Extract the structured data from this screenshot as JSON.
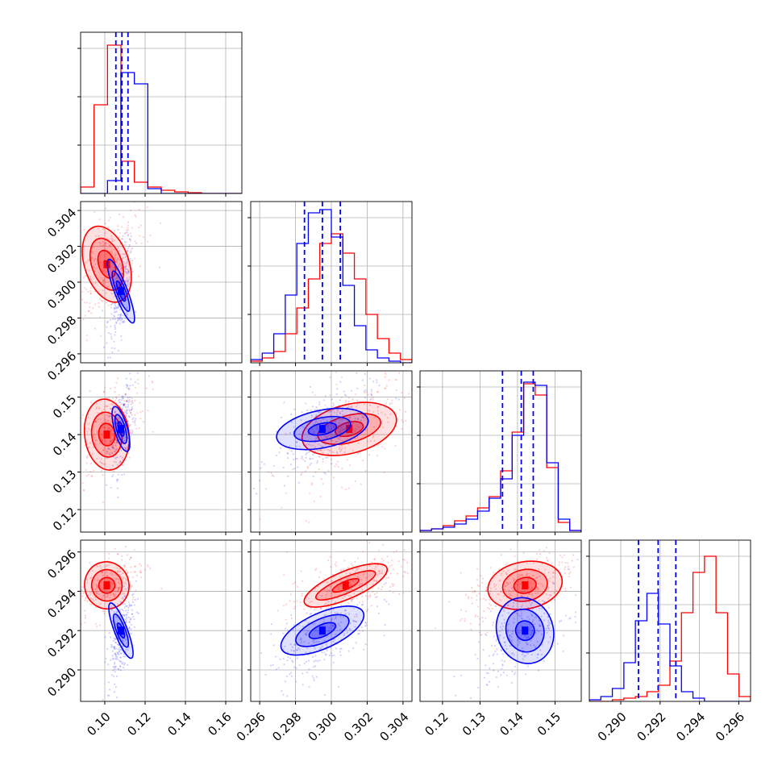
{
  "chart_data": {
    "type": "corner",
    "colors": {
      "red": "#ff0000",
      "blue": "#0000ff",
      "grid": "#b0b0b0"
    },
    "params": [
      {
        "range": [
          0.088,
          0.168
        ],
        "ticks": [
          "0.10",
          "0.12",
          "0.14",
          "0.16"
        ],
        "tickValues": [
          0.1,
          0.12,
          0.14,
          0.16
        ]
      },
      {
        "range": [
          0.2955,
          0.3045
        ],
        "ticks": [
          "0.296",
          "0.298",
          "0.300",
          "0.302",
          "0.304"
        ],
        "tickValues": [
          0.296,
          0.298,
          0.3,
          0.302,
          0.304
        ]
      },
      {
        "range": [
          0.114,
          0.157
        ],
        "ticks": [
          "0.12",
          "0.13",
          "0.14",
          "0.15"
        ],
        "tickValues": [
          0.12,
          0.13,
          0.14,
          0.15
        ]
      },
      {
        "range": [
          0.2884,
          0.2966
        ],
        "ticks": [
          "0.290",
          "0.292",
          "0.294",
          "0.296"
        ],
        "tickValues": [
          0.29,
          0.292,
          0.294,
          0.296
        ]
      }
    ],
    "series": [
      {
        "name": "red",
        "color": "#ff0000",
        "means": [
          0.101,
          0.301,
          0.141,
          0.2943
        ],
        "stds": [
          0.006,
          0.0011,
          0.005,
          0.0006
        ],
        "hist": [
          [
            0.04,
            0.55,
            0.92,
            0.2,
            0.07,
            0.04,
            0.02,
            0.01,
            0.005,
            0.0,
            0.0,
            0.0
          ],
          [
            0.01,
            0.03,
            0.07,
            0.18,
            0.34,
            0.52,
            0.74,
            0.8,
            0.68,
            0.52,
            0.3,
            0.15,
            0.06,
            0.02
          ],
          [
            0.01,
            0.02,
            0.04,
            0.07,
            0.1,
            0.15,
            0.22,
            0.38,
            0.62,
            0.92,
            0.85,
            0.4,
            0.06,
            0.01
          ],
          [
            0.0,
            0.0,
            0.01,
            0.02,
            0.03,
            0.06,
            0.1,
            0.25,
            0.55,
            0.8,
            0.9,
            0.55,
            0.17,
            0.03
          ]
        ]
      },
      {
        "name": "blue",
        "color": "#0000ff",
        "means": [
          0.108,
          0.2995,
          0.141,
          0.2918
        ],
        "stds": [
          0.002,
          0.0009,
          0.004,
          0.0008
        ],
        "hist": [
          [
            0.0,
            0.0,
            0.08,
            0.75,
            0.68,
            0.03,
            0.0,
            0.0,
            0.0,
            0.0,
            0.0,
            0.0
          ],
          [
            0.02,
            0.06,
            0.18,
            0.42,
            0.74,
            0.93,
            0.95,
            0.78,
            0.48,
            0.23,
            0.08,
            0.03,
            0.01,
            0.0
          ],
          [
            0.01,
            0.02,
            0.03,
            0.05,
            0.08,
            0.13,
            0.21,
            0.33,
            0.6,
            0.93,
            0.91,
            0.43,
            0.08,
            0.01
          ],
          [
            0.01,
            0.03,
            0.08,
            0.24,
            0.5,
            0.67,
            0.48,
            0.22,
            0.06,
            0.02,
            0.0,
            0.0,
            0.0,
            0.0
          ]
        ]
      }
    ],
    "quantiles_blue": [
      [
        0.1055,
        0.1085,
        0.1115
      ],
      [
        0.2985,
        0.2995,
        0.3005
      ],
      [
        0.136,
        0.141,
        0.1442
      ],
      [
        0.2909,
        0.2919,
        0.2928
      ]
    ],
    "contours": {
      "red": [
        {
          "panel": "1-0",
          "cx": 0.101,
          "cy": 0.301,
          "rx": [
            0.004,
            0.0075,
            0.011
          ],
          "ry": [
            0.0008,
            0.0015,
            0.0022
          ],
          "tilt": 0.6
        },
        {
          "panel": "2-0",
          "cx": 0.101,
          "cy": 0.14,
          "rx": [
            0.004,
            0.0075,
            0.011
          ],
          "ry": [
            0.003,
            0.006,
            0.0095
          ],
          "tilt": 0.2
        },
        {
          "panel": "2-1",
          "cx": 0.301,
          "cy": 0.1415,
          "rx": [
            0.0008,
            0.0018,
            0.0027
          ],
          "ry": [
            0.0018,
            0.0036,
            0.0065
          ],
          "tilt": 0.45
        },
        {
          "panel": "3-0",
          "cx": 0.101,
          "cy": 0.2943,
          "rx": [
            0.004,
            0.0075,
            0.011
          ],
          "ry": [
            0.0004,
            0.0008,
            0.0012
          ],
          "tilt": 0.4
        },
        {
          "panel": "3-1",
          "cx": 0.3008,
          "cy": 0.2943,
          "rx": [
            0.0008,
            0.0018,
            0.0025
          ],
          "ry": [
            0.0002,
            0.0004,
            0.0007
          ],
          "tilt": 0.8
        },
        {
          "panel": "3-2",
          "cx": 0.142,
          "cy": 0.2943,
          "rx": [
            0.003,
            0.006,
            0.01
          ],
          "ry": [
            0.0004,
            0.0008,
            0.0012
          ],
          "tilt": 0.3
        }
      ],
      "blue": [
        {
          "panel": "1-0",
          "cx": 0.108,
          "cy": 0.2995,
          "rx": [
            0.0012,
            0.0022,
            0.0032
          ],
          "ry": [
            0.0006,
            0.0012,
            0.0019
          ],
          "tilt": 0.7
        },
        {
          "panel": "2-0",
          "cx": 0.108,
          "cy": 0.1415,
          "rx": [
            0.0012,
            0.0022,
            0.0032
          ],
          "ry": [
            0.002,
            0.004,
            0.0062
          ],
          "tilt": 0.5
        },
        {
          "panel": "2-1",
          "cx": 0.2995,
          "cy": 0.1415,
          "rx": [
            0.0008,
            0.0016,
            0.0026
          ],
          "ry": [
            0.0015,
            0.003,
            0.005
          ],
          "tilt": 0.35
        },
        {
          "panel": "3-0",
          "cx": 0.108,
          "cy": 0.292,
          "rx": [
            0.0012,
            0.0022,
            0.0032
          ],
          "ry": [
            0.0004,
            0.0009,
            0.0015
          ],
          "tilt": 0.7
        },
        {
          "panel": "3-1",
          "cx": 0.2995,
          "cy": 0.292,
          "rx": [
            0.0008,
            0.0016,
            0.0025
          ],
          "ry": [
            0.0003,
            0.0006,
            0.0009
          ],
          "tilt": 0.85
        },
        {
          "panel": "3-2",
          "cx": 0.142,
          "cy": 0.292,
          "rx": [
            0.0025,
            0.005,
            0.0075
          ],
          "ry": [
            0.0005,
            0.0011,
            0.0017
          ],
          "tilt": 0.6
        }
      ]
    }
  }
}
